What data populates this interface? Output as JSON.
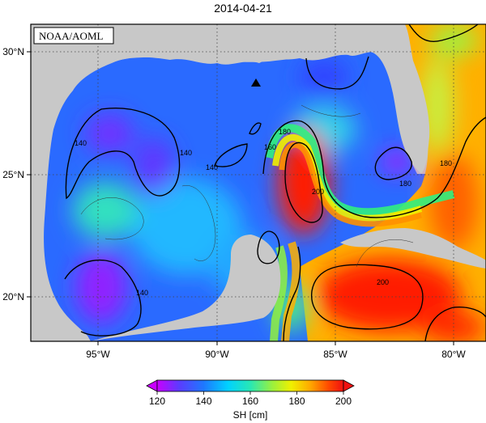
{
  "title": "2014-04-21",
  "credit": "NOAA/AOML",
  "chart_data": {
    "type": "heatmap",
    "title": "2014-04-21",
    "lon_range": [
      -98.5,
      -78
    ],
    "lat_range": [
      18,
      31
    ],
    "x_ticks": [
      {
        "lon": -95,
        "label": "95°W"
      },
      {
        "lon": -90,
        "label": "90°W"
      },
      {
        "lon": -85,
        "label": "85°W"
      },
      {
        "lon": -80,
        "label": "80°W"
      }
    ],
    "y_ticks": [
      {
        "lat": 30,
        "label": "30°N"
      },
      {
        "lat": 25,
        "label": "25°N"
      },
      {
        "lat": 20,
        "label": "20°N"
      }
    ],
    "grid": true,
    "colorbar": {
      "label": "SH [cm]",
      "min": 120,
      "max": 200,
      "ticks": [
        "120",
        "140",
        "160",
        "180",
        "200"
      ],
      "extend": "both",
      "colors": [
        "#c800ff",
        "#5a3cff",
        "#1e78ff",
        "#00d2ff",
        "#28e8b4",
        "#9cf03c",
        "#f0f000",
        "#ffaa00",
        "#ff4a00",
        "#f01010"
      ]
    },
    "contour_levels": [
      140,
      160,
      180,
      200
    ],
    "contour_labels": [
      "140",
      "140",
      "140",
      "140",
      "160",
      "180",
      "180",
      "180",
      "200",
      "200"
    ],
    "marker": {
      "lon": -88.3,
      "lat": 28.6,
      "shape": "triangle"
    }
  },
  "colors": {
    "land": "#c8c8c8",
    "ocean_low": "#1e3cff",
    "ocean_high": "#f01010"
  }
}
